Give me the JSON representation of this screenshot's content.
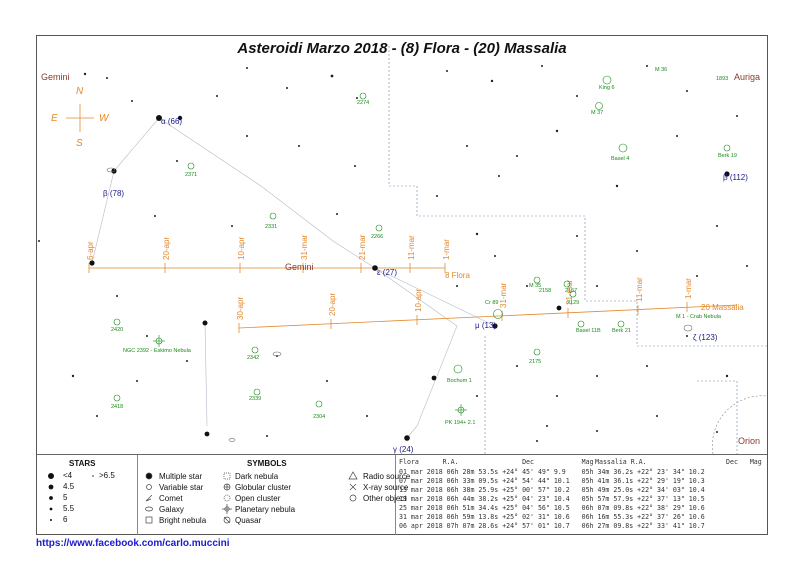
{
  "title": "Asteroidi Marzo 2018 - (8)  Flora - (20) Massalia",
  "credit": "https://www.facebook.com/carlo.muccini",
  "colors": {
    "track": "#e38a2e",
    "dso": "#1a8a1a",
    "star_label": "#1a1a8a",
    "constellation": "#8b3a2a",
    "boundary": "#6a8ab0"
  },
  "compass": {
    "north": "N",
    "south": "S",
    "east": "E",
    "west": "W"
  },
  "constellations": [
    {
      "name": "Gemini",
      "kind": "corner-left"
    },
    {
      "name": "Auriga",
      "kind": "corner-right"
    },
    {
      "name": "Gemini",
      "kind": "center"
    },
    {
      "name": "Orion",
      "kind": "bottom-right"
    }
  ],
  "star_labels": [
    {
      "text": "α (66)"
    },
    {
      "text": "β (78)"
    },
    {
      "text": "ε (27)"
    },
    {
      "text": "μ (13)"
    },
    {
      "text": "β (112)"
    },
    {
      "text": "ζ (123)"
    },
    {
      "text": "γ (24)"
    }
  ],
  "dso_labels": [
    "2274",
    "King 6",
    "M 37",
    "M 36",
    "1893",
    "Basel 4",
    "2371",
    "Berk 19",
    "2331",
    "2266",
    "M 35",
    "2158",
    "2157",
    "2129",
    "M 1 - Crab Nebula",
    "Basel 11B",
    "Berk 21",
    "2420",
    "NGC 2392 - Eskimo Nebula",
    "2342",
    "2339",
    "2304",
    "Bochum 1",
    "2175",
    "PK 194+ 2.1",
    "2418",
    "Cr 89"
  ],
  "flora_track": {
    "name": "8 Flora",
    "dates": [
      "6-apr",
      "20-apr",
      "10-apr",
      "31-mar",
      "21-mar",
      "11-mar",
      "1-mar"
    ]
  },
  "massalia_track": {
    "name": "20 Massalia",
    "dates": [
      "30-apr",
      "20-apr",
      "10-apr",
      "31-mar",
      "21-mar",
      "11-mar",
      "1-mar"
    ]
  },
  "legend": {
    "stars": {
      "title": "STARS",
      "mags": [
        "<4",
        "4.5",
        "5",
        "5.5",
        "6"
      ],
      "faint": ">6.5"
    },
    "symbols": {
      "title": "SYMBOLS",
      "items": [
        "Multiple star",
        "Variable star",
        "Comet",
        "Galaxy",
        "Bright nebula",
        "Dark nebula",
        "Globular cluster",
        "Open cluster",
        "Planetary nebula",
        "Quasar",
        "Radio source",
        "X-ray source",
        "Other object"
      ]
    },
    "ephemeris": {
      "header_flora": "Flora      R.A.                Dec            Mag",
      "header_massalia": "Massalia R.A.                    Dec   Mag",
      "rows": [
        "01 mar 2018 06h 28m 53.5s +24° 45' 49\" 9.9    05h 34m 36.2s +22° 23' 34\" 10.2",
        "07 mar 2018 06h 33m 09.5s +24° 54' 44\" 10.1   05h 41m 36.1s +22° 29' 19\" 10.3",
        "13 mar 2018 06h 38m 25.9s +25° 00' 57\" 10.2   05h 49m 25.0s +22° 34' 03\" 10.4",
        "19 mar 2018 06h 44m 38.2s +25° 04' 23\" 10.4   05h 57m 57.9s +22° 37' 13\" 10.5",
        "25 mar 2018 06h 51m 34.4s +25° 04' 56\" 10.5   06h 07m 09.8s +22° 38' 29\" 10.6",
        "31 mar 2018 06h 59m 13.8s +25° 02' 31\" 10.6   06h 16m 55.3s +22° 37' 26\" 10.6",
        "06 apr 2018 07h 07m 28.6s +24° 57' 01\" 10.7   06h 27m 09.8s +22° 33' 41\" 10.7"
      ]
    }
  }
}
